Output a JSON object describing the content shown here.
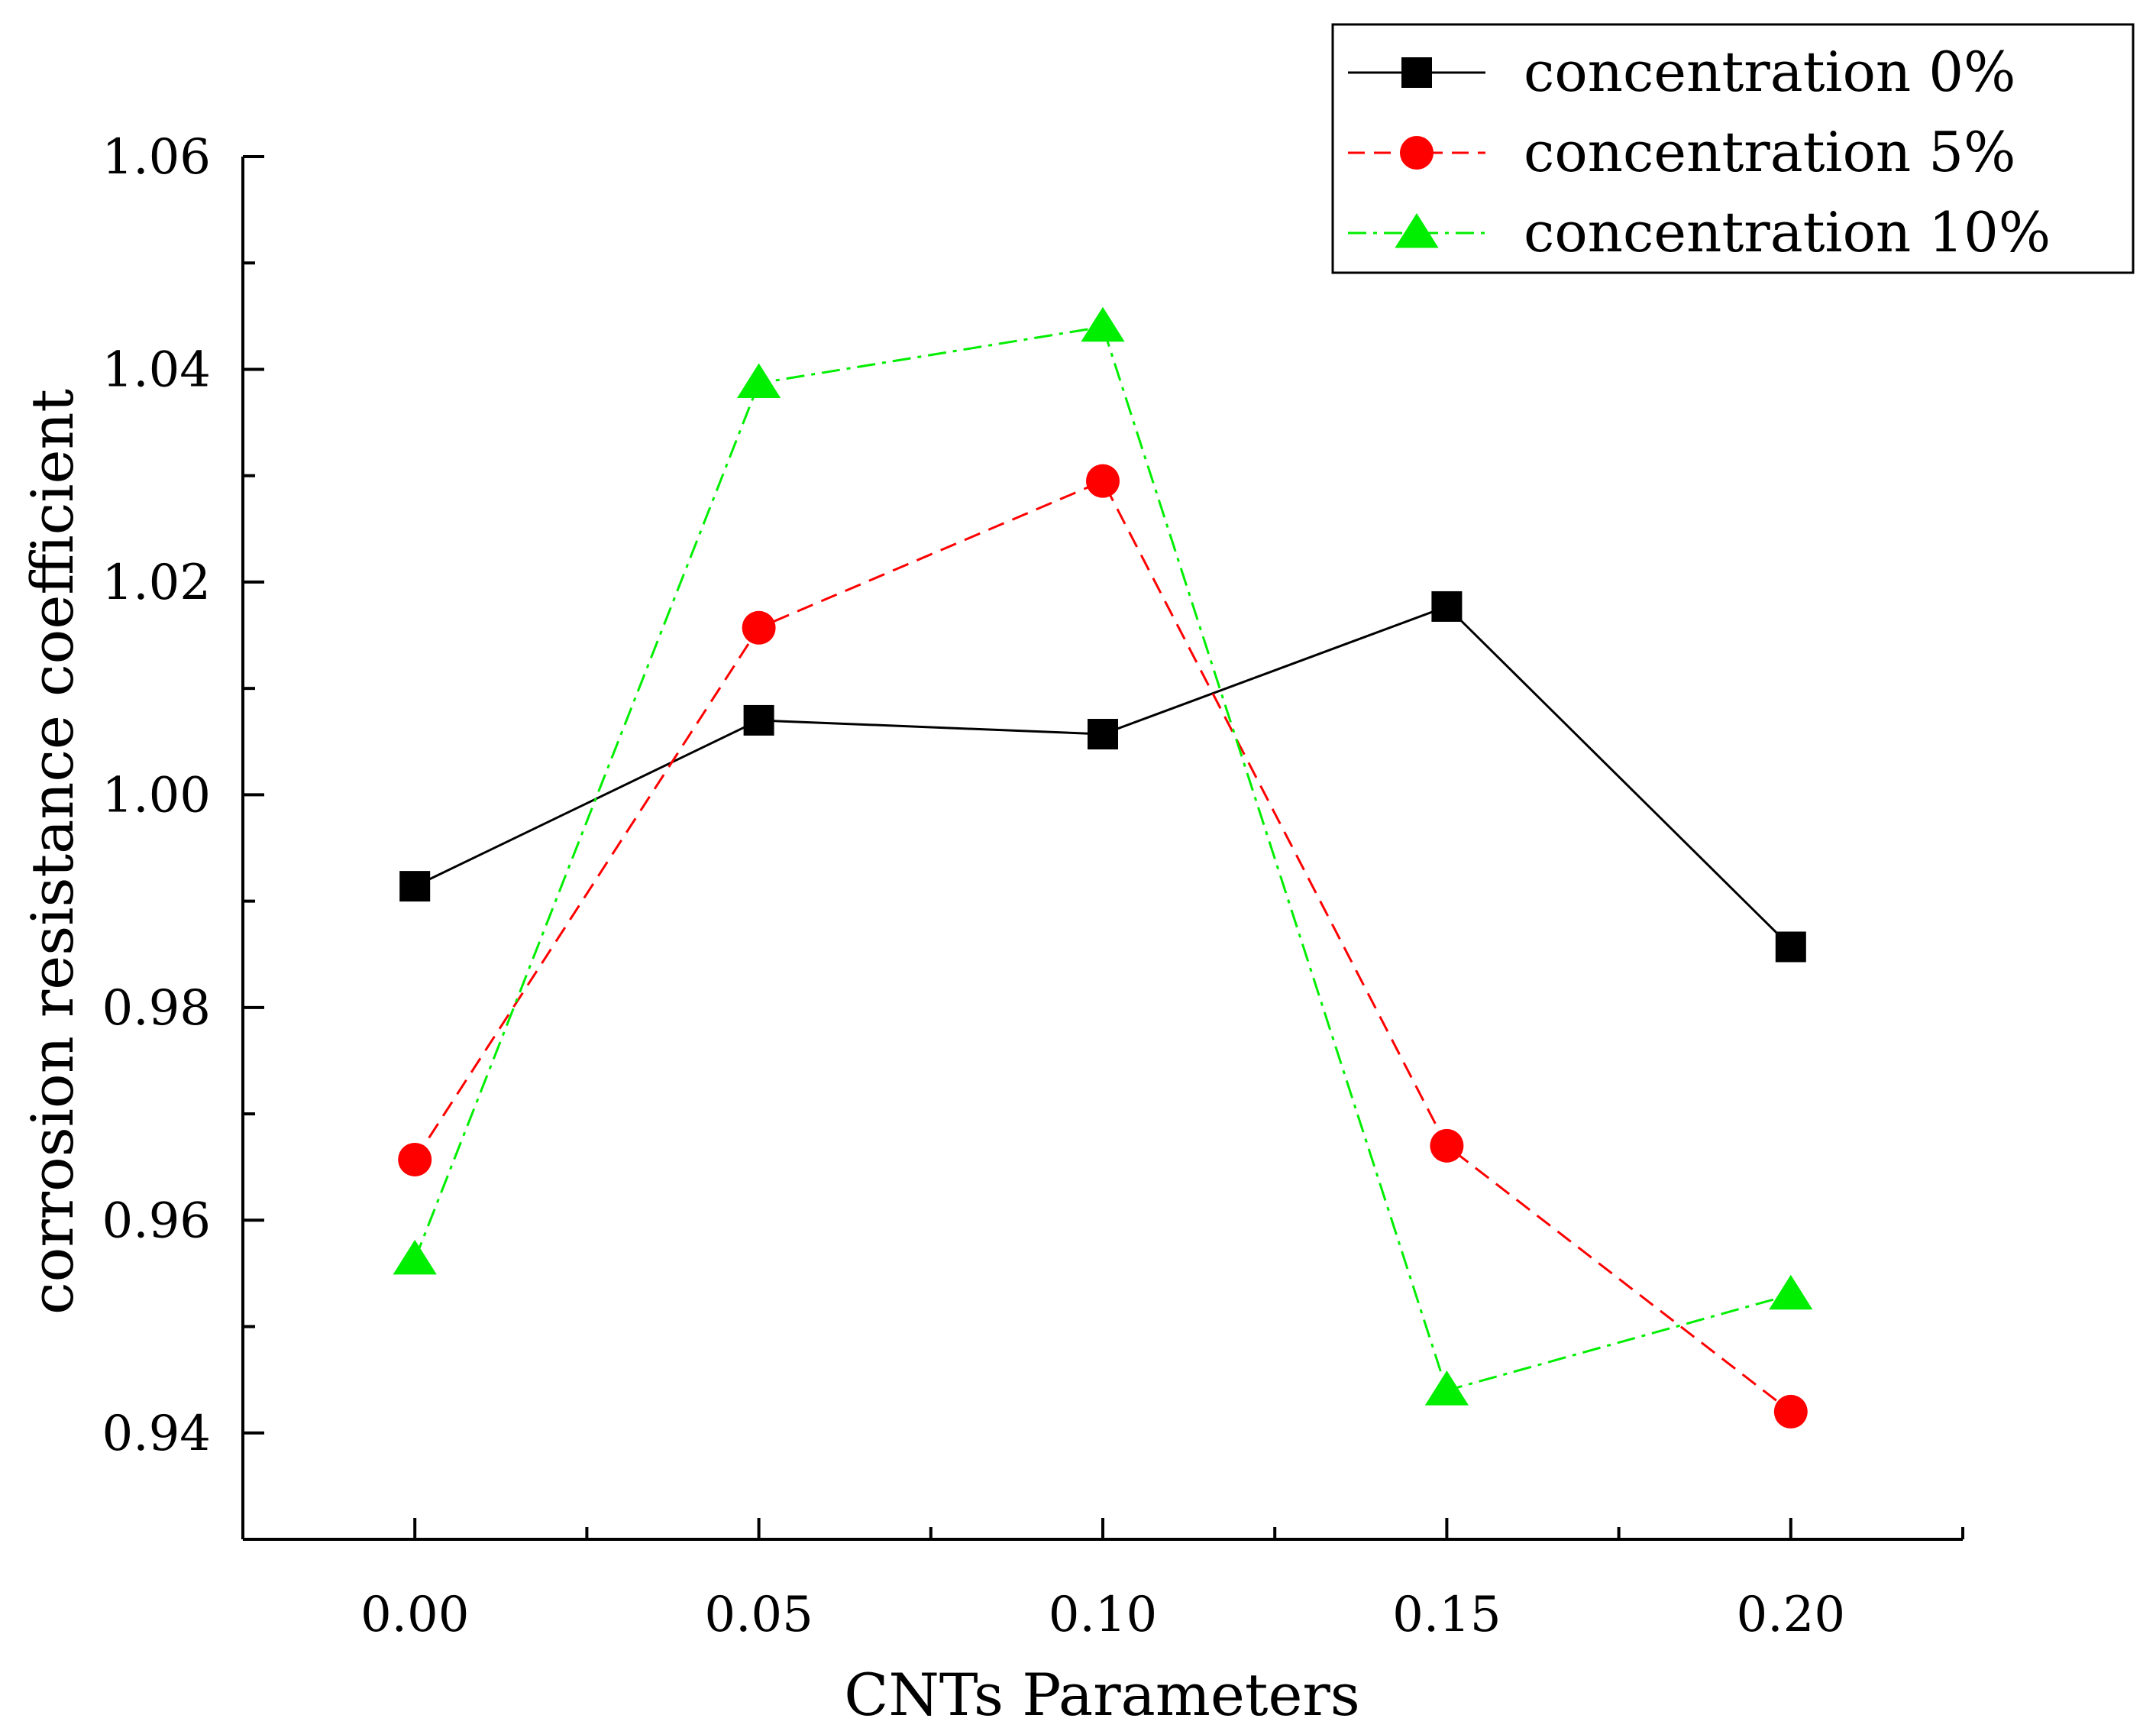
{
  "chart_data": {
    "type": "line",
    "title": "",
    "xlabel": "CNTs Parameters",
    "ylabel": "corrosion resistance coefficient",
    "x": [
      0.0,
      0.05,
      0.1,
      0.15,
      0.2
    ],
    "x_tick_labels": [
      "0.00",
      "0.05",
      "0.10",
      "0.15",
      "0.20"
    ],
    "y_tick_values": [
      0.94,
      0.96,
      0.98,
      1.0,
      1.02,
      1.04,
      1.06
    ],
    "y_tick_labels": [
      "0.94",
      "0.96",
      "0.98",
      "1.00",
      "1.02",
      "1.04",
      "1.06"
    ],
    "xlim": [
      -0.025,
      0.225
    ],
    "ylim": [
      0.93,
      1.06
    ],
    "grid": false,
    "legend_position": "top-right",
    "series": [
      {
        "name": "concentration 0%",
        "label": "concentration 0%",
        "values": [
          0.9914,
          1.007,
          1.0057,
          1.0177,
          0.9857
        ],
        "color": "#000000",
        "marker": "square",
        "line_style": "solid"
      },
      {
        "name": "concentration 5%",
        "label": "concentration 5%",
        "values": [
          0.9657,
          1.0157,
          1.0295,
          0.967,
          0.942
        ],
        "color": "#ff0000",
        "marker": "circle",
        "line_style": "dashed"
      },
      {
        "name": "concentration 10%",
        "label": "concentration 10%",
        "values": [
          0.9563,
          1.0387,
          1.044,
          0.944,
          0.953
        ],
        "color": "#00ee00",
        "marker": "triangle",
        "line_style": "dashdot"
      }
    ]
  }
}
